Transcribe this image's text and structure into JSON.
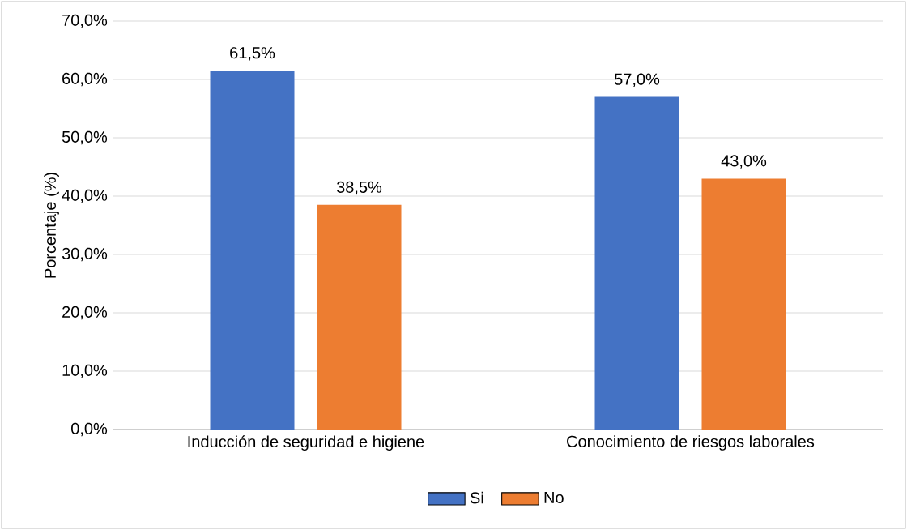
{
  "chart_data": {
    "type": "bar",
    "ylabel": "Porcentaje (%)",
    "categories": [
      "Inducción de seguridad e higiene",
      "Conocimiento de riesgos laborales"
    ],
    "series": [
      {
        "name": "Si",
        "color": "#4472c4",
        "values": [
          61.5,
          57.0
        ],
        "value_labels": [
          "61,5%",
          "57,0%"
        ]
      },
      {
        "name": "No",
        "color": "#ed7d31",
        "values": [
          38.5,
          43.0
        ],
        "value_labels": [
          "38,5%",
          "43,0%"
        ]
      }
    ],
    "ylim": [
      0,
      70
    ],
    "yticks": [
      {
        "value": 0,
        "label": "0,0%"
      },
      {
        "value": 10,
        "label": "10,0%"
      },
      {
        "value": 20,
        "label": "20,0%"
      },
      {
        "value": 30,
        "label": "30,0%"
      },
      {
        "value": 40,
        "label": "40,0%"
      },
      {
        "value": 50,
        "label": "50,0%"
      },
      {
        "value": 60,
        "label": "60,0%"
      },
      {
        "value": 70,
        "label": "70,0%"
      }
    ],
    "grid": "y",
    "legend": "bottom"
  }
}
